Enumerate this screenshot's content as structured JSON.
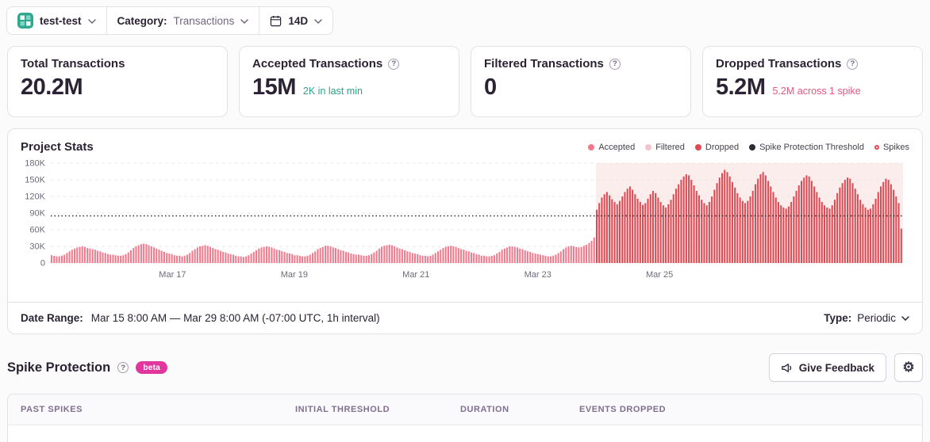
{
  "topbar": {
    "project_name": "test-test",
    "category_label": "Category:",
    "category_value": "Transactions",
    "range_value": "14D"
  },
  "cards": [
    {
      "title": "Total Transactions",
      "value": "20.2M",
      "subtext": "",
      "has_help": false
    },
    {
      "title": "Accepted Transactions",
      "value": "15M",
      "subtext": "2K in last min",
      "subtext_color": "#2ba185",
      "has_help": true
    },
    {
      "title": "Filtered Transactions",
      "value": "0",
      "subtext": "",
      "has_help": true
    },
    {
      "title": "Dropped Transactions",
      "value": "5.2M",
      "subtext": "5.2M across 1 spike",
      "subtext_color": "#e4567f",
      "has_help": true
    }
  ],
  "chart_data": {
    "type": "bar",
    "title": "Project Stats",
    "x_range": "Mar 15 8:00 AM to Mar 29 8:00 AM, 1h interval",
    "ylim": [
      0,
      180000
    ],
    "values_unit": "thousands_of_events_per_hour",
    "y_ticks": [
      {
        "v": 180,
        "label": "180K"
      },
      {
        "v": 150,
        "label": "150K"
      },
      {
        "v": 120,
        "label": "120K"
      },
      {
        "v": 90,
        "label": "90K"
      },
      {
        "v": 60,
        "label": "60K"
      },
      {
        "v": 30,
        "label": "30K"
      },
      {
        "v": 0,
        "label": "0"
      }
    ],
    "x_ticks": [
      {
        "hour": 48,
        "label": "Mar 17"
      },
      {
        "hour": 96,
        "label": "Mar 19"
      },
      {
        "hour": 144,
        "label": "Mar 21"
      },
      {
        "hour": 192,
        "label": "Mar 23"
      },
      {
        "hour": 240,
        "label": "Mar 25"
      }
    ],
    "total_hours": 336,
    "threshold": 85,
    "spike_region": {
      "start_index": 213
    },
    "accepted": [
      14,
      13,
      12,
      12,
      13,
      15,
      18,
      21,
      24,
      26,
      28,
      29,
      30,
      29,
      27,
      26,
      25,
      24,
      22,
      21,
      19,
      18,
      16,
      15,
      15,
      14,
      13,
      13,
      14,
      16,
      19,
      23,
      27,
      30,
      32,
      34,
      35,
      34,
      32,
      30,
      28,
      26,
      24,
      22,
      20,
      18,
      17,
      16,
      14,
      13,
      13,
      12,
      13,
      15,
      18,
      22,
      25,
      28,
      30,
      31,
      32,
      31,
      29,
      27,
      25,
      24,
      22,
      20,
      19,
      17,
      16,
      15,
      13,
      12,
      12,
      11,
      12,
      14,
      17,
      20,
      23,
      26,
      28,
      29,
      30,
      29,
      28,
      26,
      24,
      23,
      21,
      20,
      18,
      17,
      16,
      14,
      14,
      13,
      12,
      12,
      13,
      15,
      18,
      21,
      25,
      27,
      29,
      31,
      31,
      30,
      28,
      27,
      25,
      23,
      22,
      20,
      19,
      17,
      16,
      15,
      15,
      14,
      13,
      13,
      14,
      16,
      19,
      22,
      26,
      29,
      31,
      32,
      33,
      32,
      30,
      28,
      26,
      25,
      23,
      21,
      20,
      18,
      17,
      16,
      14,
      13,
      13,
      12,
      13,
      15,
      18,
      21,
      24,
      27,
      29,
      30,
      31,
      30,
      29,
      27,
      25,
      24,
      22,
      21,
      19,
      18,
      16,
      15,
      13,
      13,
      12,
      12,
      13,
      14,
      17,
      20,
      24,
      26,
      28,
      30,
      30,
      29,
      28,
      26,
      25,
      23,
      21,
      20,
      18,
      17,
      16,
      15,
      14,
      13,
      12,
      12,
      13,
      15,
      18,
      21,
      25,
      28,
      30,
      31,
      30,
      29,
      28,
      29,
      31,
      33,
      36,
      40,
      46
    ],
    "dropped": [
      96,
      108,
      118,
      124,
      128,
      122,
      115,
      110,
      106,
      112,
      120,
      128,
      134,
      138,
      132,
      124,
      116,
      110,
      105,
      108,
      116,
      124,
      130,
      126,
      118,
      110,
      104,
      100,
      106,
      114,
      124,
      134,
      142,
      150,
      156,
      160,
      158,
      150,
      140,
      130,
      122,
      114,
      108,
      104,
      110,
      120,
      132,
      144,
      154,
      162,
      168,
      164,
      156,
      146,
      136,
      126,
      118,
      112,
      108,
      112,
      120,
      130,
      142,
      152,
      160,
      164,
      158,
      148,
      138,
      128,
      118,
      110,
      104,
      100,
      98,
      102,
      110,
      120,
      130,
      140,
      148,
      154,
      158,
      156,
      148,
      138,
      128,
      118,
      110,
      104,
      100,
      98,
      104,
      114,
      126,
      136,
      144,
      150,
      154,
      152,
      144,
      134,
      124,
      114,
      106,
      100,
      96,
      98,
      106,
      116,
      128,
      138,
      146,
      152,
      150,
      142,
      132,
      120,
      108,
      62
    ],
    "colors": {
      "accepted": "#f2798b",
      "filtered": "#f7c2cc",
      "dropped": "#df4a52",
      "threshold": "#2f2936",
      "spike_bg": "rgba(223,74,82,0.10)",
      "grid": "#e9e7ec",
      "axis_text": "#6f6a78"
    },
    "legend": [
      {
        "label": "Accepted",
        "type": "dot",
        "color": "#f2798b"
      },
      {
        "label": "Filtered",
        "type": "dot",
        "color": "#f7c2cc"
      },
      {
        "label": "Dropped",
        "type": "dot",
        "color": "#df4a52"
      },
      {
        "label": "Spike Protection Threshold",
        "type": "dot",
        "color": "#2f2936"
      },
      {
        "label": "Spikes",
        "type": "ring",
        "color": "#df4a52"
      }
    ]
  },
  "footer": {
    "label": "Date Range:",
    "value": "Mar 15 8:00 AM — Mar 29 8:00 AM (-07:00 UTC, 1h interval)",
    "type_label": "Type:",
    "type_value": "Periodic"
  },
  "spike_section": {
    "title": "Spike Protection",
    "beta_label": "beta",
    "beta_color": "#e0369e",
    "feedback_label": "Give Feedback"
  },
  "table": {
    "headers": [
      "PAST SPIKES",
      "INITIAL THRESHOLD",
      "DURATION",
      "EVENTS DROPPED"
    ]
  }
}
